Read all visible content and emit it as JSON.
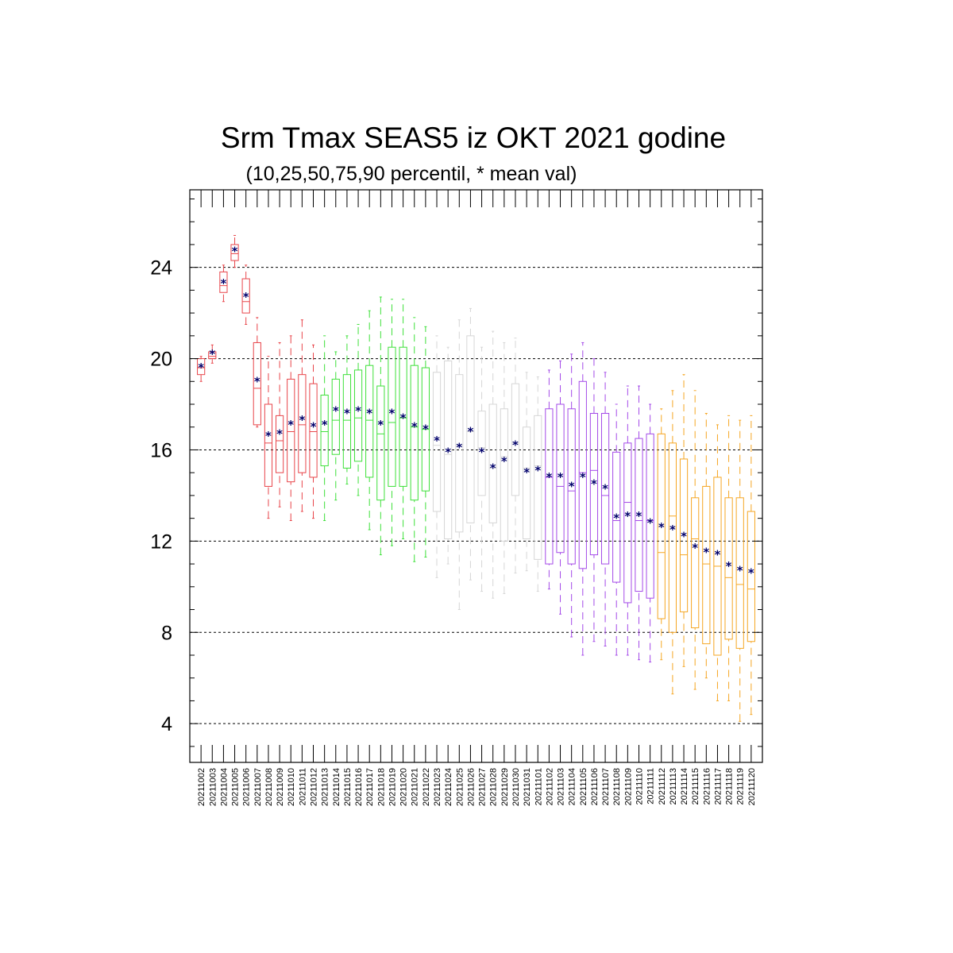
{
  "chart_data": {
    "type": "box",
    "title": "Srm Tmax SEAS5 iz OKT 2021 godine",
    "subtitle": "(10,25,50,75,90 percentil, * mean val)",
    "ylim": [
      2.3,
      27.4
    ],
    "yticks": [
      4,
      8,
      12,
      16,
      20,
      24
    ],
    "grid": "horizontal-dashed",
    "mean_marker": "*",
    "mean_color": "#00006b",
    "color_groups": [
      {
        "color": "#e8454a",
        "from": 0,
        "to": 10
      },
      {
        "color": "#3ee03a",
        "from": 11,
        "to": 20
      },
      {
        "color": "#d6d6d6",
        "from": 21,
        "to": 30
      },
      {
        "color": "#a44ae8",
        "from": 31,
        "to": 40
      },
      {
        "color": "#f5a623",
        "from": 41,
        "to": 50
      }
    ],
    "categories": [
      "20211002",
      "20211003",
      "20211004",
      "20211005",
      "20211006",
      "20211007",
      "20211008",
      "20211009",
      "20211010",
      "20211011",
      "20211012",
      "20211013",
      "20211014",
      "20211015",
      "20211016",
      "20211017",
      "20211018",
      "20211019",
      "20211020",
      "20211021",
      "20211022",
      "20211023",
      "20211024",
      "20211025",
      "20211026",
      "20211027",
      "20211028",
      "20211029",
      "20211030",
      "20211031",
      "20211101",
      "20211102",
      "20211103",
      "20211104",
      "20211105",
      "20211106",
      "20211107",
      "20211108",
      "20211109",
      "20211110",
      "20211111",
      "20211112",
      "20211113",
      "20211114",
      "20211115",
      "20211116",
      "20211117",
      "20211118",
      "20211119",
      "20211120"
    ],
    "p10": [
      19.0,
      19.8,
      22.5,
      24.0,
      21.5,
      17.0,
      13.0,
      13.5,
      12.9,
      13.3,
      13.0,
      12.9,
      13.8,
      14.5,
      14.0,
      12.5,
      11.4,
      11.8,
      12.1,
      11.1,
      11.3,
      10.4,
      11.0,
      9.0,
      10.3,
      9.8,
      9.5,
      9.7,
      10.6,
      10.7,
      9.8,
      9.9,
      8.8,
      7.8,
      7.0,
      7.6,
      7.4,
      7.0,
      7.0,
      6.8,
      6.7,
      6.8,
      5.3,
      6.5,
      5.5,
      6.0,
      5.0,
      5.0,
      4.1,
      4.4
    ],
    "p25": [
      19.3,
      20.0,
      22.9,
      24.3,
      22.0,
      17.1,
      14.4,
      15.0,
      14.6,
      15.0,
      14.8,
      15.3,
      15.8,
      15.2,
      15.5,
      14.8,
      13.8,
      14.4,
      14.4,
      13.8,
      14.2,
      13.3,
      12.1,
      12.4,
      12.8,
      14.0,
      12.8,
      12.0,
      14.0,
      12.1,
      11.2,
      11.0,
      11.5,
      11.0,
      10.8,
      11.4,
      11.0,
      10.2,
      9.3,
      9.8,
      9.5,
      8.6,
      8.0,
      8.9,
      8.2,
      7.5,
      7.0,
      7.7,
      7.3,
      7.6
    ],
    "p50": [
      19.6,
      20.1,
      23.2,
      24.6,
      22.5,
      18.7,
      16.3,
      16.4,
      16.8,
      17.1,
      16.8,
      16.8,
      17.3,
      17.3,
      17.4,
      17.3,
      16.7,
      17.2,
      17.4,
      17.0,
      16.9,
      16.2,
      15.8,
      16.2,
      16.8,
      16.1,
      15.2,
      15.7,
      16.3,
      15.2,
      15.3,
      14.8,
      14.4,
      14.2,
      15.0,
      15.1,
      14.0,
      12.9,
      13.7,
      12.9,
      12.9,
      11.5,
      13.1,
      11.4,
      12.1,
      11.0,
      10.9,
      10.4,
      10.1,
      9.9
    ],
    "p75": [
      20.0,
      20.3,
      23.8,
      25.0,
      23.5,
      20.7,
      18.0,
      17.5,
      19.1,
      19.3,
      18.9,
      18.4,
      19.1,
      19.3,
      19.5,
      19.7,
      18.8,
      20.5,
      20.5,
      19.7,
      19.6,
      19.4,
      19.9,
      19.3,
      21.0,
      17.7,
      18.0,
      17.8,
      18.9,
      17.0,
      17.5,
      17.8,
      18.0,
      17.8,
      19.0,
      17.6,
      17.6,
      15.9,
      16.3,
      16.5,
      16.7,
      16.7,
      16.3,
      15.6,
      13.9,
      14.4,
      14.8,
      13.9,
      13.9,
      13.3
    ],
    "p90": [
      20.1,
      20.6,
      24.1,
      25.4,
      24.1,
      21.8,
      20.1,
      20.7,
      21.0,
      21.7,
      20.6,
      21.0,
      20.3,
      21.0,
      21.5,
      22.1,
      22.7,
      22.6,
      22.6,
      21.8,
      21.4,
      21.0,
      20.5,
      21.7,
      22.2,
      20.5,
      21.2,
      20.7,
      20.9,
      19.4,
      19.2,
      19.5,
      19.9,
      20.2,
      20.7,
      20.0,
      19.4,
      18.0,
      18.8,
      18.8,
      18.0,
      17.8,
      18.6,
      19.3,
      18.6,
      17.6,
      17.1,
      17.5,
      17.3,
      17.5
    ],
    "mean": [
      19.6,
      20.2,
      23.3,
      24.7,
      22.7,
      19.0,
      16.6,
      16.7,
      17.1,
      17.3,
      17.0,
      17.1,
      17.7,
      17.6,
      17.7,
      17.6,
      17.1,
      17.6,
      17.4,
      17.0,
      16.9,
      16.4,
      15.9,
      16.1,
      16.8,
      15.9,
      15.2,
      15.5,
      16.2,
      15.0,
      15.1,
      14.8,
      14.8,
      14.4,
      14.8,
      14.5,
      14.3,
      13.0,
      13.1,
      13.1,
      12.8,
      12.6,
      12.5,
      12.2,
      11.7,
      11.5,
      11.4,
      10.9,
      10.7,
      10.6
    ]
  }
}
